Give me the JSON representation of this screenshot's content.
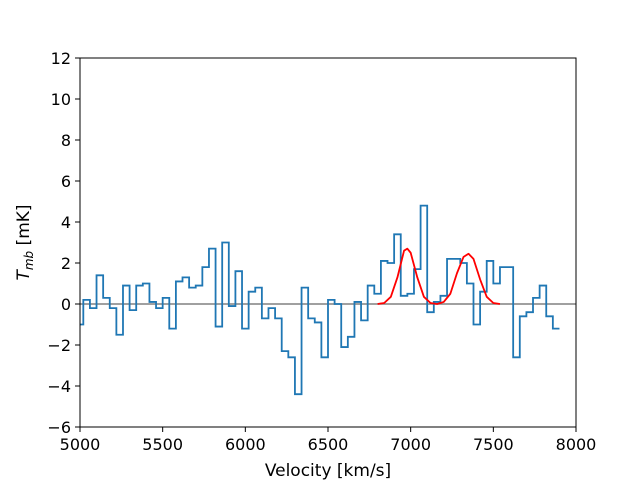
{
  "chart_data": {
    "type": "line",
    "title": "",
    "xlabel": "Velocity [km/s]",
    "ylabel": "T_mb [mK]",
    "ylabel_main": "T",
    "ylabel_sub": "mb",
    "ylabel_unit": " [mK]",
    "xlim": [
      5000,
      8000
    ],
    "ylim": [
      -6,
      12
    ],
    "xticks": [
      5000,
      5500,
      6000,
      6500,
      7000,
      7500,
      8000
    ],
    "yticks": [
      -6,
      -4,
      -2,
      0,
      2,
      4,
      6,
      8,
      10,
      12
    ],
    "grid": false,
    "colors": {
      "spectrum": "#1f77b4",
      "fit": "#ff0000",
      "baseline": "#808080"
    },
    "series": [
      {
        "style": "step",
        "bin_width": 40,
        "x_start": 5000,
        "values": [
          -1.0,
          0.2,
          -0.2,
          1.4,
          0.3,
          -0.2,
          -1.5,
          0.9,
          -0.3,
          0.9,
          1.0,
          0.1,
          -0.2,
          0.3,
          -1.2,
          1.1,
          1.3,
          0.8,
          0.9,
          1.8,
          2.7,
          -1.1,
          3.0,
          -0.1,
          1.6,
          -1.2,
          0.6,
          0.8,
          -0.7,
          -0.2,
          -0.7,
          -2.3,
          -2.6,
          -4.4,
          0.8,
          -0.7,
          -0.9,
          -2.6,
          0.2,
          0.0,
          -2.1,
          -1.6,
          0.1,
          -0.8,
          0.9,
          0.5,
          2.1,
          2.0,
          3.4,
          0.4,
          0.5,
          1.7,
          4.8,
          -0.4,
          0.1,
          0.4,
          2.2,
          2.2,
          2.0,
          1.0,
          -1.0,
          0.6,
          2.1,
          1.0,
          1.8,
          1.8,
          -2.6,
          -0.6,
          -0.4,
          0.3,
          0.9,
          -0.6,
          -1.2
        ]
      },
      {
        "style": "line",
        "x": [
          6800,
          6840,
          6880,
          6920,
          6960,
          6980,
          7000,
          7040,
          7080,
          7120,
          7160,
          7200,
          7240,
          7280,
          7320,
          7350,
          7380,
          7420,
          7460,
          7500,
          7540
        ],
        "values": [
          0.0,
          0.05,
          0.35,
          1.3,
          2.6,
          2.7,
          2.5,
          1.3,
          0.35,
          0.05,
          0.0,
          0.1,
          0.5,
          1.5,
          2.3,
          2.45,
          2.2,
          1.2,
          0.35,
          0.05,
          0.0
        ]
      },
      {
        "style": "hline",
        "values": [
          0
        ]
      }
    ]
  }
}
